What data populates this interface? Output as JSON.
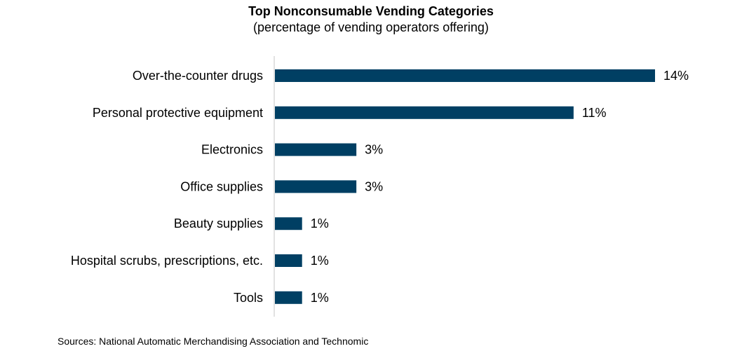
{
  "chart_data": {
    "type": "bar",
    "orientation": "horizontal",
    "title": "Top Nonconsumable Vending Categories",
    "subtitle": "(percentage of vending operators offering)",
    "categories": [
      "Over-the-counter drugs",
      "Personal protective equipment",
      "Electronics",
      "Office supplies",
      "Beauty supplies",
      "Hospital scrubs, prescriptions, etc.",
      "Tools"
    ],
    "values": [
      14,
      11,
      3,
      3,
      1,
      1,
      1
    ],
    "value_labels": [
      "14%",
      "11%",
      "3%",
      "3%",
      "1%",
      "1%",
      "1%"
    ],
    "unit": "%",
    "xlim": [
      0,
      14
    ],
    "grid": false,
    "legend": "none",
    "bar_color": "#003f63",
    "axis_color": "#d9d9d9"
  },
  "source": "Sources: National Automatic Merchandising Association and Technomic"
}
